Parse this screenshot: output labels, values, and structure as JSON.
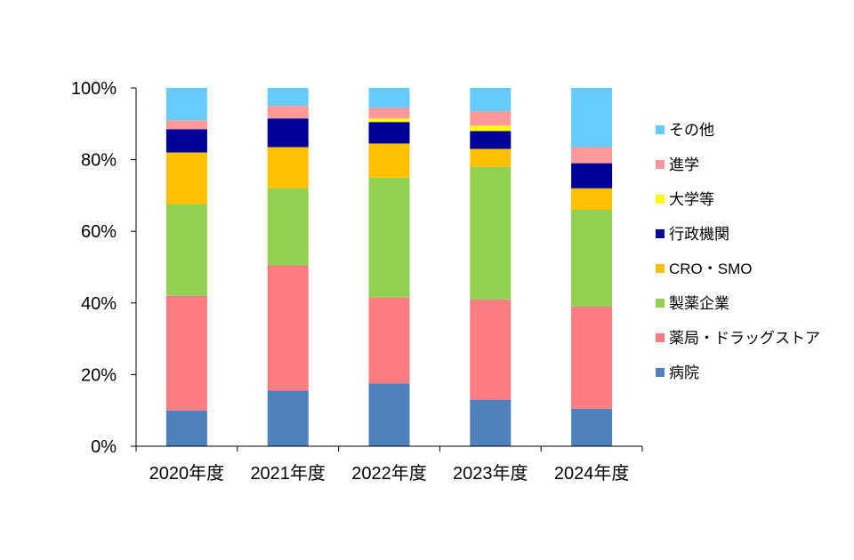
{
  "chart_data": {
    "type": "bar",
    "stacked": true,
    "normalized_percent": true,
    "categories": [
      "2020年度",
      "2021年度",
      "2022年度",
      "2023年度",
      "2024年度"
    ],
    "ylim": [
      0,
      100
    ],
    "y_ticks": [
      "0%",
      "20%",
      "40%",
      "60%",
      "80%",
      "100%"
    ],
    "y_tick_values": [
      0,
      20,
      40,
      60,
      80,
      100
    ],
    "legend_position": "right",
    "grid": false,
    "series": [
      {
        "name": "病院",
        "color": "#4F81BD",
        "values": [
          10,
          15.5,
          17.5,
          13,
          10.5
        ]
      },
      {
        "name": "薬局・ドラッグストア",
        "color": "#FF7C80",
        "values": [
          32,
          35,
          24,
          28,
          28.5
        ]
      },
      {
        "name": "製薬企業",
        "color": "#92D050",
        "values": [
          25.5,
          21.5,
          33.5,
          37,
          27
        ]
      },
      {
        "name": "CRO・SMO",
        "color": "#FFC000",
        "values": [
          14.5,
          11.5,
          9.5,
          5,
          6
        ]
      },
      {
        "name": "行政機関",
        "color": "#000099",
        "values": [
          6.5,
          8,
          6,
          5,
          7
        ]
      },
      {
        "name": "大学等",
        "color": "#FFFF00",
        "values": [
          0,
          0,
          1,
          1.5,
          0
        ]
      },
      {
        "name": "進学",
        "color": "#FF9999",
        "values": [
          2.5,
          3.5,
          3,
          4,
          4.5
        ]
      },
      {
        "name": "その他",
        "color": "#66CCFF",
        "values": [
          9,
          5,
          5.5,
          6.5,
          16.5
        ]
      }
    ]
  }
}
